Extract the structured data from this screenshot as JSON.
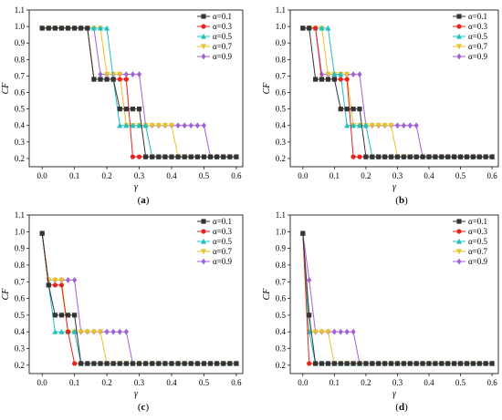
{
  "chart_data": [
    {
      "type": "line",
      "panel_label": "(a)",
      "xlabel": "γ",
      "ylabel": "CF",
      "xlim": [
        -0.04,
        0.62
      ],
      "ylim": [
        0.15,
        1.1
      ],
      "xticks": [
        "0.0",
        "0.1",
        "0.2",
        "0.3",
        "0.4",
        "0.5",
        "0.6"
      ],
      "yticks": [
        "0.2",
        "0.3",
        "0.4",
        "0.5",
        "0.6",
        "0.7",
        "0.8",
        "0.9",
        "1.0",
        "1.1"
      ],
      "legend_position": "top-right",
      "x": [
        0,
        0.02,
        0.04,
        0.06,
        0.08,
        0.1,
        0.12,
        0.14,
        0.16,
        0.18,
        0.2,
        0.22,
        0.24,
        0.26,
        0.28,
        0.3,
        0.32,
        0.34,
        0.36,
        0.38,
        0.4,
        0.42,
        0.44,
        0.46,
        0.48,
        0.5,
        0.52,
        0.54,
        0.56,
        0.58,
        0.6
      ],
      "series": [
        {
          "name": "α=0.1",
          "color": "#333333",
          "marker": "square",
          "values": [
            0.99,
            0.99,
            0.99,
            0.99,
            0.99,
            0.99,
            0.99,
            0.99,
            0.68,
            0.68,
            0.68,
            0.68,
            0.5,
            0.5,
            0.5,
            0.5,
            0.21,
            0.21,
            0.21,
            0.21,
            0.21,
            0.21,
            0.21,
            0.21,
            0.21,
            0.21,
            0.21,
            0.21,
            0.21,
            0.21,
            0.21
          ]
        },
        {
          "name": "α=0.3",
          "color": "#e8231f",
          "marker": "circle",
          "values": [
            0.99,
            0.99,
            0.99,
            0.99,
            0.99,
            0.99,
            0.99,
            0.99,
            0.68,
            0.68,
            0.68,
            0.68,
            0.68,
            0.68,
            0.21,
            0.21,
            0.21,
            0.21,
            0.21,
            0.21,
            0.21,
            0.21,
            0.21,
            0.21,
            0.21,
            0.21,
            0.21,
            0.21,
            0.21,
            0.21,
            0.21
          ]
        },
        {
          "name": "α=0.5",
          "color": "#1ec0c0",
          "marker": "triangle",
          "values": [
            0.99,
            0.99,
            0.99,
            0.99,
            0.99,
            0.99,
            0.99,
            0.99,
            0.99,
            0.99,
            0.99,
            0.68,
            0.4,
            0.4,
            0.4,
            0.4,
            0.4,
            0.21,
            0.21,
            0.21,
            0.21,
            0.21,
            0.21,
            0.21,
            0.21,
            0.21,
            0.21,
            0.21,
            0.21,
            0.21,
            0.21
          ]
        },
        {
          "name": "α=0.7",
          "color": "#e8c22a",
          "marker": "triangle-down",
          "values": [
            0.99,
            0.99,
            0.99,
            0.99,
            0.99,
            0.99,
            0.99,
            0.99,
            0.99,
            0.99,
            0.71,
            0.71,
            0.71,
            0.4,
            0.4,
            0.4,
            0.4,
            0.4,
            0.4,
            0.4,
            0.4,
            0.21,
            0.21,
            0.21,
            0.21,
            0.21,
            0.21,
            0.21,
            0.21,
            0.21,
            0.21
          ]
        },
        {
          "name": "α=0.9",
          "color": "#a162d8",
          "marker": "diamond",
          "values": [
            0.99,
            0.99,
            0.99,
            0.99,
            0.99,
            0.99,
            0.99,
            0.99,
            0.99,
            0.71,
            0.71,
            0.71,
            0.71,
            0.71,
            0.71,
            0.71,
            0.4,
            0.4,
            0.4,
            0.4,
            0.4,
            0.4,
            0.4,
            0.4,
            0.4,
            0.4,
            0.21,
            0.21,
            0.21,
            0.21,
            0.21
          ]
        }
      ]
    },
    {
      "type": "line",
      "panel_label": "(b)",
      "xlabel": "γ",
      "ylabel": "CF",
      "xlim": [
        -0.04,
        0.62
      ],
      "ylim": [
        0.15,
        1.1
      ],
      "xticks": [
        "0.0",
        "0.1",
        "0.2",
        "0.3",
        "0.4",
        "0.5",
        "0.6"
      ],
      "yticks": [
        "0.2",
        "0.3",
        "0.4",
        "0.5",
        "0.6",
        "0.7",
        "0.8",
        "0.9",
        "1.0",
        "1.1"
      ],
      "legend_position": "top-right",
      "x": [
        0,
        0.02,
        0.04,
        0.06,
        0.08,
        0.1,
        0.12,
        0.14,
        0.16,
        0.18,
        0.2,
        0.22,
        0.24,
        0.26,
        0.28,
        0.3,
        0.32,
        0.34,
        0.36,
        0.38,
        0.4,
        0.42,
        0.44,
        0.46,
        0.48,
        0.5,
        0.52,
        0.54,
        0.56,
        0.58,
        0.6
      ],
      "series": [
        {
          "name": "α=0.1",
          "color": "#333333",
          "marker": "square",
          "values": [
            0.99,
            0.99,
            0.68,
            0.68,
            0.68,
            0.68,
            0.5,
            0.5,
            0.5,
            0.5,
            0.21,
            0.21,
            0.21,
            0.21,
            0.21,
            0.21,
            0.21,
            0.21,
            0.21,
            0.21,
            0.21,
            0.21,
            0.21,
            0.21,
            0.21,
            0.21,
            0.21,
            0.21,
            0.21,
            0.21,
            0.21
          ]
        },
        {
          "name": "α=0.3",
          "color": "#e8231f",
          "marker": "circle",
          "values": [
            0.99,
            0.99,
            0.99,
            0.68,
            0.68,
            0.68,
            0.68,
            0.68,
            0.21,
            0.21,
            0.21,
            0.21,
            0.21,
            0.21,
            0.21,
            0.21,
            0.21,
            0.21,
            0.21,
            0.21,
            0.21,
            0.21,
            0.21,
            0.21,
            0.21,
            0.21,
            0.21,
            0.21,
            0.21,
            0.21,
            0.21
          ]
        },
        {
          "name": "α=0.5",
          "color": "#1ec0c0",
          "marker": "triangle",
          "values": [
            0.99,
            0.99,
            0.99,
            0.99,
            0.99,
            0.71,
            0.71,
            0.4,
            0.4,
            0.4,
            0.4,
            0.21,
            0.21,
            0.21,
            0.21,
            0.21,
            0.21,
            0.21,
            0.21,
            0.21,
            0.21,
            0.21,
            0.21,
            0.21,
            0.21,
            0.21,
            0.21,
            0.21,
            0.21,
            0.21,
            0.21
          ]
        },
        {
          "name": "α=0.7",
          "color": "#e8c22a",
          "marker": "triangle-down",
          "values": [
            0.99,
            0.99,
            0.99,
            0.99,
            0.71,
            0.71,
            0.71,
            0.71,
            0.4,
            0.4,
            0.4,
            0.4,
            0.4,
            0.4,
            0.4,
            0.21,
            0.21,
            0.21,
            0.21,
            0.21,
            0.21,
            0.21,
            0.21,
            0.21,
            0.21,
            0.21,
            0.21,
            0.21,
            0.21,
            0.21,
            0.21
          ]
        },
        {
          "name": "α=0.9",
          "color": "#a162d8",
          "marker": "diamond",
          "values": [
            0.99,
            0.99,
            0.99,
            0.71,
            0.71,
            0.71,
            0.71,
            0.71,
            0.71,
            0.71,
            0.4,
            0.4,
            0.4,
            0.4,
            0.4,
            0.4,
            0.4,
            0.4,
            0.4,
            0.21,
            0.21,
            0.21,
            0.21,
            0.21,
            0.21,
            0.21,
            0.21,
            0.21,
            0.21,
            0.21,
            0.21
          ]
        }
      ]
    },
    {
      "type": "line",
      "panel_label": "(c)",
      "xlabel": "γ",
      "ylabel": "CF",
      "xlim": [
        -0.04,
        0.62
      ],
      "ylim": [
        0.15,
        1.1
      ],
      "xticks": [
        "0.0",
        "0.1",
        "0.2",
        "0.3",
        "0.4",
        "0.5",
        "0.6"
      ],
      "yticks": [
        "0.2",
        "0.3",
        "0.4",
        "0.5",
        "0.6",
        "0.7",
        "0.8",
        "0.9",
        "1.0",
        "1.1"
      ],
      "legend_position": "top-right",
      "x": [
        0,
        0.02,
        0.04,
        0.06,
        0.08,
        0.1,
        0.12,
        0.14,
        0.16,
        0.18,
        0.2,
        0.22,
        0.24,
        0.26,
        0.28,
        0.3,
        0.32,
        0.34,
        0.36,
        0.38,
        0.4,
        0.42,
        0.44,
        0.46,
        0.48,
        0.5,
        0.52,
        0.54,
        0.56,
        0.58,
        0.6
      ],
      "series": [
        {
          "name": "α=0.1",
          "color": "#333333",
          "marker": "square",
          "values": [
            0.99,
            0.68,
            0.5,
            0.5,
            0.5,
            0.5,
            0.21,
            0.21,
            0.21,
            0.21,
            0.21,
            0.21,
            0.21,
            0.21,
            0.21,
            0.21,
            0.21,
            0.21,
            0.21,
            0.21,
            0.21,
            0.21,
            0.21,
            0.21,
            0.21,
            0.21,
            0.21,
            0.21,
            0.21,
            0.21,
            0.21
          ]
        },
        {
          "name": "α=0.3",
          "color": "#e8231f",
          "marker": "circle",
          "values": [
            0.99,
            0.68,
            0.68,
            0.68,
            0.4,
            0.21,
            0.21,
            0.21,
            0.21,
            0.21,
            0.21,
            0.21,
            0.21,
            0.21,
            0.21,
            0.21,
            0.21,
            0.21,
            0.21,
            0.21,
            0.21,
            0.21,
            0.21,
            0.21,
            0.21,
            0.21,
            0.21,
            0.21,
            0.21,
            0.21,
            0.21
          ]
        },
        {
          "name": "α=0.5",
          "color": "#1ec0c0",
          "marker": "triangle",
          "values": [
            0.99,
            0.68,
            0.4,
            0.4,
            0.4,
            0.4,
            0.21,
            0.21,
            0.21,
            0.21,
            0.21,
            0.21,
            0.21,
            0.21,
            0.21,
            0.21,
            0.21,
            0.21,
            0.21,
            0.21,
            0.21,
            0.21,
            0.21,
            0.21,
            0.21,
            0.21,
            0.21,
            0.21,
            0.21,
            0.21,
            0.21
          ]
        },
        {
          "name": "α=0.7",
          "color": "#e8c22a",
          "marker": "triangle-down",
          "values": [
            0.99,
            0.71,
            0.71,
            0.71,
            0.4,
            0.4,
            0.4,
            0.4,
            0.4,
            0.4,
            0.21,
            0.21,
            0.21,
            0.21,
            0.21,
            0.21,
            0.21,
            0.21,
            0.21,
            0.21,
            0.21,
            0.21,
            0.21,
            0.21,
            0.21,
            0.21,
            0.21,
            0.21,
            0.21,
            0.21,
            0.21
          ]
        },
        {
          "name": "α=0.9",
          "color": "#a162d8",
          "marker": "diamond",
          "values": [
            0.99,
            0.71,
            0.71,
            0.71,
            0.71,
            0.71,
            0.4,
            0.4,
            0.4,
            0.4,
            0.4,
            0.4,
            0.4,
            0.4,
            0.21,
            0.21,
            0.21,
            0.21,
            0.21,
            0.21,
            0.21,
            0.21,
            0.21,
            0.21,
            0.21,
            0.21,
            0.21,
            0.21,
            0.21,
            0.21,
            0.21
          ]
        }
      ]
    },
    {
      "type": "line",
      "panel_label": "(d)",
      "xlabel": "γ",
      "ylabel": "CF",
      "xlim": [
        -0.04,
        0.62
      ],
      "ylim": [
        0.15,
        1.1
      ],
      "xticks": [
        "0.0",
        "0.1",
        "0.2",
        "0.3",
        "0.4",
        "0.5",
        "0.6"
      ],
      "yticks": [
        "0.2",
        "0.3",
        "0.4",
        "0.5",
        "0.6",
        "0.7",
        "0.8",
        "0.9",
        "1.0",
        "1.1"
      ],
      "legend_position": "top-right",
      "x": [
        0,
        0.02,
        0.04,
        0.06,
        0.08,
        0.1,
        0.12,
        0.14,
        0.16,
        0.18,
        0.2,
        0.22,
        0.24,
        0.26,
        0.28,
        0.3,
        0.32,
        0.34,
        0.36,
        0.38,
        0.4,
        0.42,
        0.44,
        0.46,
        0.48,
        0.5,
        0.52,
        0.54,
        0.56,
        0.58,
        0.6
      ],
      "series": [
        {
          "name": "α=0.1",
          "color": "#333333",
          "marker": "square",
          "values": [
            0.99,
            0.5,
            0.21,
            0.21,
            0.21,
            0.21,
            0.21,
            0.21,
            0.21,
            0.21,
            0.21,
            0.21,
            0.21,
            0.21,
            0.21,
            0.21,
            0.21,
            0.21,
            0.21,
            0.21,
            0.21,
            0.21,
            0.21,
            0.21,
            0.21,
            0.21,
            0.21,
            0.21,
            0.21,
            0.21,
            0.21
          ]
        },
        {
          "name": "α=0.3",
          "color": "#e8231f",
          "marker": "circle",
          "values": [
            0.99,
            0.21,
            0.21,
            0.21,
            0.21,
            0.21,
            0.21,
            0.21,
            0.21,
            0.21,
            0.21,
            0.21,
            0.21,
            0.21,
            0.21,
            0.21,
            0.21,
            0.21,
            0.21,
            0.21,
            0.21,
            0.21,
            0.21,
            0.21,
            0.21,
            0.21,
            0.21,
            0.21,
            0.21,
            0.21,
            0.21
          ]
        },
        {
          "name": "α=0.5",
          "color": "#1ec0c0",
          "marker": "triangle",
          "values": [
            0.99,
            0.4,
            0.21,
            0.21,
            0.21,
            0.21,
            0.21,
            0.21,
            0.21,
            0.21,
            0.21,
            0.21,
            0.21,
            0.21,
            0.21,
            0.21,
            0.21,
            0.21,
            0.21,
            0.21,
            0.21,
            0.21,
            0.21,
            0.21,
            0.21,
            0.21,
            0.21,
            0.21,
            0.21,
            0.21,
            0.21
          ]
        },
        {
          "name": "α=0.7",
          "color": "#e8c22a",
          "marker": "triangle-down",
          "values": [
            0.99,
            0.4,
            0.4,
            0.4,
            0.4,
            0.21,
            0.21,
            0.21,
            0.21,
            0.21,
            0.21,
            0.21,
            0.21,
            0.21,
            0.21,
            0.21,
            0.21,
            0.21,
            0.21,
            0.21,
            0.21,
            0.21,
            0.21,
            0.21,
            0.21,
            0.21,
            0.21,
            0.21,
            0.21,
            0.21,
            0.21
          ]
        },
        {
          "name": "α=0.9",
          "color": "#a162d8",
          "marker": "diamond",
          "values": [
            0.99,
            0.71,
            0.4,
            0.4,
            0.4,
            0.4,
            0.4,
            0.4,
            0.4,
            0.21,
            0.21,
            0.21,
            0.21,
            0.21,
            0.21,
            0.21,
            0.21,
            0.21,
            0.21,
            0.21,
            0.21,
            0.21,
            0.21,
            0.21,
            0.21,
            0.21,
            0.21,
            0.21,
            0.21,
            0.21,
            0.21
          ]
        }
      ]
    }
  ]
}
